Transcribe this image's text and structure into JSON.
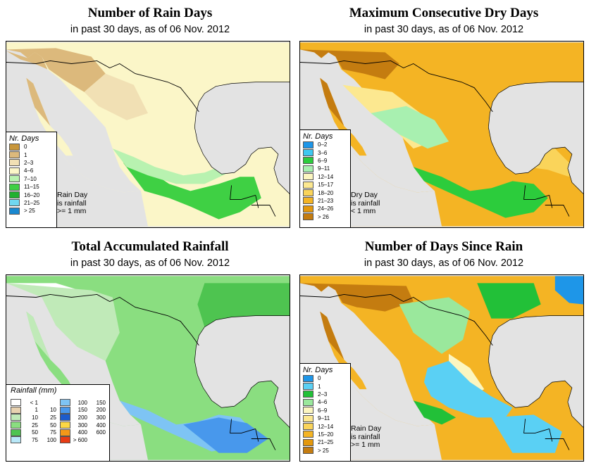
{
  "panels": [
    {
      "title": "Number of Rain Days",
      "subtitle": "in past 30 days, as of  06 Nov. 2012",
      "legend_title": "Nr. Days",
      "legend": [
        {
          "label": "0",
          "color": "#c8963a"
        },
        {
          "label": "1",
          "color": "#dcb97c"
        },
        {
          "label": "2–3",
          "color": "#f1e0b4"
        },
        {
          "label": "4–6",
          "color": "#fbf6c8"
        },
        {
          "label": "7–10",
          "color": "#b8f2b0"
        },
        {
          "label": "11–15",
          "color": "#3fd044"
        },
        {
          "label": "16–20",
          "color": "#22b030"
        },
        {
          "label": "21–25",
          "color": "#70d8f0"
        },
        {
          "label": "> 25",
          "color": "#1a88d0"
        }
      ],
      "note": [
        "Rain Day",
        "is rainfall",
        ">= 1 mm"
      ]
    },
    {
      "title": "Maximum Consecutive Dry Days",
      "subtitle": "in past 30 days, as of  06 Nov. 2012",
      "legend_title": "Nr. Days",
      "legend": [
        {
          "label": "0–2",
          "color": "#1e96e8"
        },
        {
          "label": "3–6",
          "color": "#3ec8f0"
        },
        {
          "label": "6–9",
          "color": "#2ccc3c"
        },
        {
          "label": "9–11",
          "color": "#a8f0b0"
        },
        {
          "label": "12–14",
          "color": "#fcf6c0"
        },
        {
          "label": "15–17",
          "color": "#fce890"
        },
        {
          "label": "18–20",
          "color": "#fad45a"
        },
        {
          "label": "21–23",
          "color": "#f4b424"
        },
        {
          "label": "24–26",
          "color": "#e4980c"
        },
        {
          "label": "> 26",
          "color": "#c47c10"
        }
      ],
      "note": [
        "Dry Day",
        "is rainfall",
        "< 1 mm"
      ]
    },
    {
      "title": "Total Accumulated Rainfall",
      "subtitle": "in past 30 days, as of  06 Nov. 2012",
      "legend_title": "Rainfall (mm)",
      "legend_left": [
        {
          "lo": "< 1",
          "hi": "",
          "color": "#ffffff"
        },
        {
          "lo": "1",
          "hi": "10",
          "color": "#e8d2b0"
        },
        {
          "lo": "10",
          "hi": "25",
          "color": "#c0eab8"
        },
        {
          "lo": "25",
          "hi": "50",
          "color": "#8ade80"
        },
        {
          "lo": "50",
          "hi": "75",
          "color": "#4ec450"
        },
        {
          "lo": "75",
          "hi": "100",
          "color": "#b8e8f8"
        }
      ],
      "legend_right": [
        {
          "lo": "100",
          "hi": "150",
          "color": "#7ec4f4"
        },
        {
          "lo": "150",
          "hi": "200",
          "color": "#4898ec"
        },
        {
          "lo": "200",
          "hi": "300",
          "color": "#1c5ccc"
        },
        {
          "lo": "300",
          "hi": "400",
          "color": "#fcd844"
        },
        {
          "lo": "400",
          "hi": "600",
          "color": "#f49818"
        },
        {
          "lo": "> 600",
          "hi": "",
          "color": "#e83c14"
        }
      ]
    },
    {
      "title": "Number of Days Since Rain",
      "subtitle": "in past 30 days, as of  06 Nov. 2012",
      "legend_title": "Nr. Days",
      "legend": [
        {
          "label": "0",
          "color": "#1e96e8"
        },
        {
          "label": "1",
          "color": "#5ad0f4"
        },
        {
          "label": "2–3",
          "color": "#22c038"
        },
        {
          "label": "4–6",
          "color": "#9ae89c"
        },
        {
          "label": "6–9",
          "color": "#fcf6c0"
        },
        {
          "label": "9–11",
          "color": "#fce890"
        },
        {
          "label": "12–14",
          "color": "#fad45a"
        },
        {
          "label": "15–20",
          "color": "#f4b424"
        },
        {
          "label": "21–25",
          "color": "#e4980c"
        },
        {
          "label": "> 25",
          "color": "#c47c10"
        }
      ],
      "note": [
        "Rain Day",
        "is rainfall",
        ">= 1 mm"
      ]
    }
  ]
}
